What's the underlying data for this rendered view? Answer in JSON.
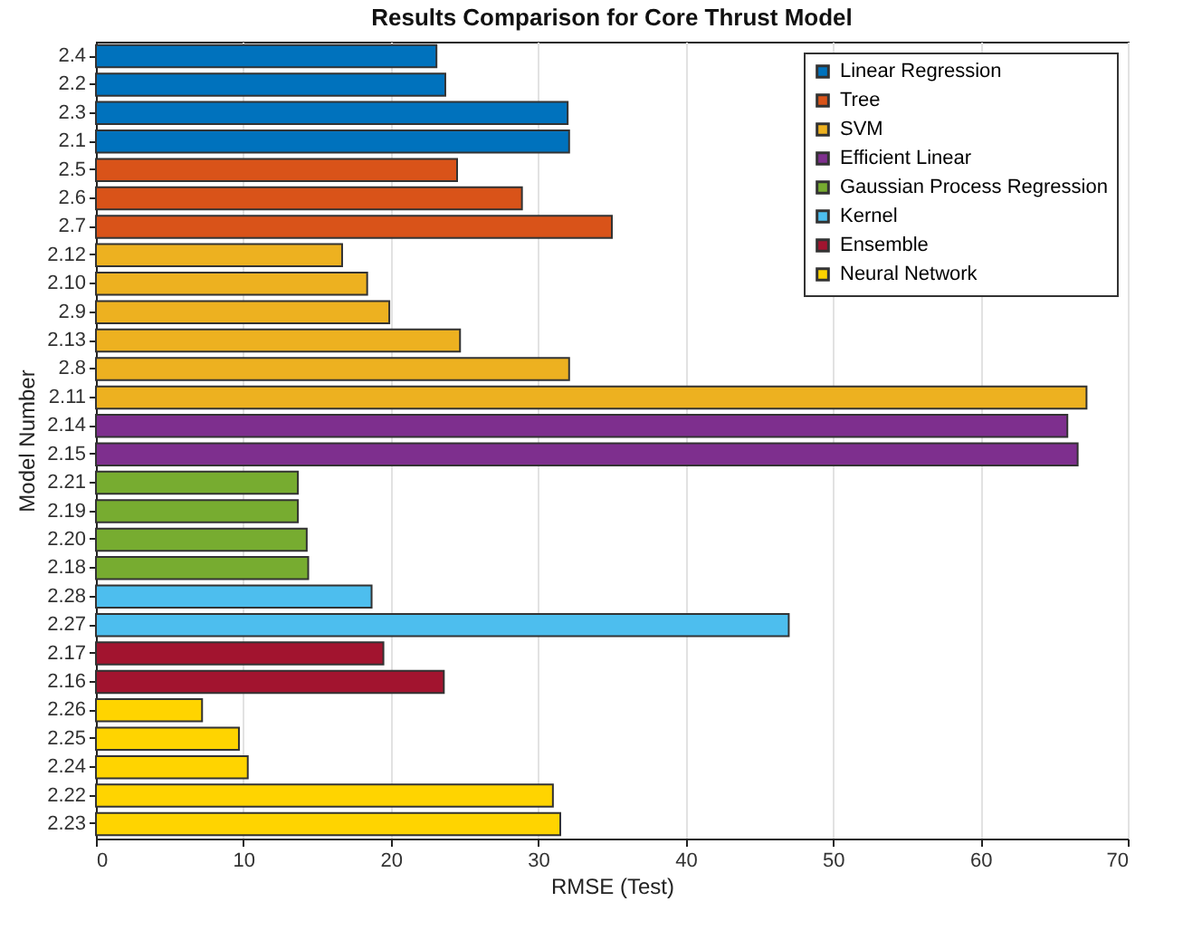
{
  "chart_data": {
    "type": "bar",
    "orientation": "horizontal",
    "title": "Results Comparison for Core Thrust Model",
    "xlabel": "RMSE (Test)",
    "ylabel": "Model Number",
    "categories": [
      "2.4",
      "2.2",
      "2.3",
      "2.1",
      "2.5",
      "2.6",
      "2.7",
      "2.12",
      "2.10",
      "2.9",
      "2.13",
      "2.8",
      "2.11",
      "2.14",
      "2.15",
      "2.21",
      "2.19",
      "2.20",
      "2.18",
      "2.28",
      "2.27",
      "2.17",
      "2.16",
      "2.26",
      "2.25",
      "2.24",
      "2.22",
      "2.23"
    ],
    "series": [
      {
        "name": "Linear Regression",
        "color": "#0072bd",
        "values": [
          23.1,
          23.7,
          32.0,
          32.1,
          null,
          null,
          null,
          null,
          null,
          null,
          null,
          null,
          null,
          null,
          null,
          null,
          null,
          null,
          null,
          null,
          null,
          null,
          null,
          null,
          null,
          null,
          null,
          null
        ]
      },
      {
        "name": "Tree",
        "color": "#d95319",
        "values": [
          null,
          null,
          null,
          null,
          24.5,
          28.9,
          35.0,
          null,
          null,
          null,
          null,
          null,
          null,
          null,
          null,
          null,
          null,
          null,
          null,
          null,
          null,
          null,
          null,
          null,
          null,
          null,
          null,
          null
        ]
      },
      {
        "name": "SVM",
        "color": "#edb120",
        "values": [
          null,
          null,
          null,
          null,
          null,
          null,
          null,
          16.7,
          18.4,
          19.9,
          24.7,
          32.1,
          67.2,
          null,
          null,
          null,
          null,
          null,
          null,
          null,
          null,
          null,
          null,
          null,
          null,
          null,
          null,
          null
        ]
      },
      {
        "name": "Efficient Linear",
        "color": "#7e2f8e",
        "values": [
          null,
          null,
          null,
          null,
          null,
          null,
          null,
          null,
          null,
          null,
          null,
          null,
          null,
          65.9,
          66.6,
          null,
          null,
          null,
          null,
          null,
          null,
          null,
          null,
          null,
          null,
          null,
          null,
          null
        ]
      },
      {
        "name": "Gaussian Process Regression",
        "color": "#77ac30",
        "values": [
          null,
          null,
          null,
          null,
          null,
          null,
          null,
          null,
          null,
          null,
          null,
          null,
          null,
          null,
          null,
          13.7,
          13.7,
          14.3,
          14.4,
          null,
          null,
          null,
          null,
          null,
          null,
          null,
          null,
          null
        ]
      },
      {
        "name": "Kernel",
        "color": "#4dbeee",
        "values": [
          null,
          null,
          null,
          null,
          null,
          null,
          null,
          null,
          null,
          null,
          null,
          null,
          null,
          null,
          null,
          null,
          null,
          null,
          null,
          18.7,
          47.0,
          null,
          null,
          null,
          null,
          null,
          null,
          null
        ]
      },
      {
        "name": "Ensemble",
        "color": "#a2142f",
        "values": [
          null,
          null,
          null,
          null,
          null,
          null,
          null,
          null,
          null,
          null,
          null,
          null,
          null,
          null,
          null,
          null,
          null,
          null,
          null,
          null,
          null,
          19.5,
          23.6,
          null,
          null,
          null,
          null,
          null
        ]
      },
      {
        "name": "Neural Network",
        "color": "#ffd400",
        "values": [
          null,
          null,
          null,
          null,
          null,
          null,
          null,
          null,
          null,
          null,
          null,
          null,
          null,
          null,
          null,
          null,
          null,
          null,
          null,
          null,
          null,
          null,
          null,
          7.2,
          9.7,
          10.3,
          31.0,
          31.5
        ]
      }
    ],
    "xlim": [
      0,
      70
    ],
    "xticks": [
      0,
      10,
      20,
      30,
      40,
      50,
      60,
      70
    ],
    "grid": "x",
    "legend": "top right"
  }
}
